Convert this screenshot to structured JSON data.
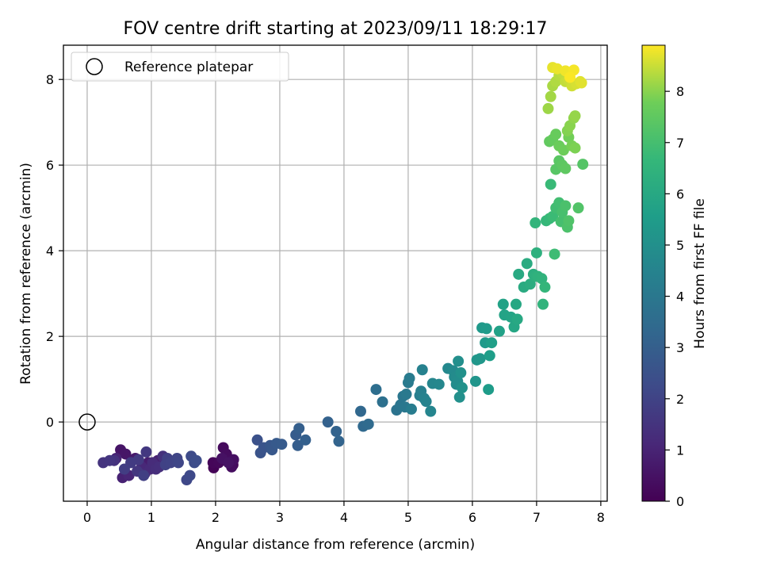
{
  "chart_data": {
    "type": "scatter",
    "title": "FOV centre drift starting at 2023/09/11 18:29:17",
    "xlabel": "Angular distance from reference (arcmin)",
    "ylabel": "Rotation from reference (arcmin)",
    "xlim": [
      -0.37,
      8.1
    ],
    "ylim": [
      -1.85,
      8.8
    ],
    "xticks": [
      0,
      1,
      2,
      3,
      4,
      5,
      6,
      7,
      8
    ],
    "yticks": [
      0,
      2,
      4,
      6,
      8
    ],
    "grid": true,
    "legend": {
      "position": "top-left",
      "entries": [
        "Reference platepar"
      ]
    },
    "reference_point": {
      "x": 0,
      "y": 0
    },
    "colorbar": {
      "label": "Hours from first FF file",
      "range": [
        0,
        8.9
      ],
      "ticks": [
        0,
        1,
        2,
        3,
        4,
        5,
        6,
        7,
        8
      ],
      "colormap": "viridis"
    },
    "points": [
      [
        1.97,
        -1.07,
        0.05
      ],
      [
        2.27,
        -1.0,
        0.1
      ],
      [
        1.96,
        -0.95,
        0.15
      ],
      [
        2.05,
        -0.95,
        0.2
      ],
      [
        2.12,
        -0.6,
        0.25
      ],
      [
        2.17,
        -0.75,
        0.3
      ],
      [
        2.25,
        -1.05,
        0.35
      ],
      [
        2.28,
        -0.88,
        0.4
      ],
      [
        2.1,
        -0.85,
        0.45
      ],
      [
        2.2,
        -0.95,
        0.5
      ],
      [
        0.52,
        -0.65,
        0.55
      ],
      [
        0.6,
        -0.75,
        0.6
      ],
      [
        0.75,
        -0.85,
        0.7
      ],
      [
        0.95,
        -0.95,
        0.8
      ],
      [
        1.05,
        -1.0,
        0.85
      ],
      [
        1.1,
        -0.9,
        0.9
      ],
      [
        0.55,
        -1.3,
        0.95
      ],
      [
        0.45,
        -0.85,
        1.0
      ],
      [
        0.65,
        -1.25,
        1.05
      ],
      [
        0.85,
        -1.05,
        1.1
      ],
      [
        0.9,
        -1.2,
        1.15
      ],
      [
        0.98,
        -1.1,
        1.2
      ],
      [
        1.02,
        -0.95,
        1.25
      ],
      [
        1.07,
        -1.1,
        1.3
      ],
      [
        1.12,
        -1.05,
        1.35
      ],
      [
        1.18,
        -0.8,
        1.4
      ],
      [
        0.42,
        -0.9,
        1.45
      ],
      [
        0.25,
        -0.95,
        1.5
      ],
      [
        0.35,
        -0.9,
        1.55
      ],
      [
        0.78,
        -1.15,
        1.6
      ],
      [
        0.92,
        -0.7,
        1.65
      ],
      [
        0.8,
        -0.88,
        1.7
      ],
      [
        0.68,
        -0.95,
        1.75
      ],
      [
        0.58,
        -1.1,
        1.8
      ],
      [
        0.88,
        -1.25,
        1.85
      ],
      [
        1.25,
        -0.85,
        1.9
      ],
      [
        1.22,
        -1.0,
        1.95
      ],
      [
        1.3,
        -0.95,
        2.0
      ],
      [
        1.4,
        -0.85,
        2.05
      ],
      [
        1.42,
        -0.95,
        2.1
      ],
      [
        1.55,
        -1.35,
        2.15
      ],
      [
        1.6,
        -1.25,
        2.2
      ],
      [
        1.62,
        -0.8,
        2.25
      ],
      [
        1.67,
        -0.95,
        2.3
      ],
      [
        1.7,
        -0.9,
        2.35
      ],
      [
        2.65,
        -0.42,
        2.5
      ],
      [
        2.7,
        -0.72,
        2.55
      ],
      [
        2.75,
        -0.6,
        2.6
      ],
      [
        2.85,
        -0.55,
        2.7
      ],
      [
        2.88,
        -0.65,
        2.75
      ],
      [
        2.95,
        -0.5,
        2.8
      ],
      [
        3.03,
        -0.52,
        2.85
      ],
      [
        3.25,
        -0.3,
        2.9
      ],
      [
        3.28,
        -0.55,
        2.95
      ],
      [
        3.3,
        -0.15,
        3.0
      ],
      [
        3.4,
        -0.42,
        3.05
      ],
      [
        3.75,
        0.0,
        3.1
      ],
      [
        3.88,
        -0.22,
        3.15
      ],
      [
        3.92,
        -0.45,
        3.2
      ],
      [
        4.26,
        0.25,
        3.35
      ],
      [
        4.3,
        -0.1,
        3.4
      ],
      [
        4.38,
        -0.05,
        3.45
      ],
      [
        4.5,
        0.76,
        3.6
      ],
      [
        4.6,
        0.47,
        3.7
      ],
      [
        4.82,
        0.28,
        3.8
      ],
      [
        4.88,
        0.4,
        3.9
      ],
      [
        4.92,
        0.6,
        3.95
      ],
      [
        4.95,
        0.35,
        4.0
      ],
      [
        4.97,
        0.65,
        4.05
      ],
      [
        5.0,
        0.92,
        4.1
      ],
      [
        5.02,
        1.02,
        4.15
      ],
      [
        5.05,
        0.3,
        4.2
      ],
      [
        5.18,
        0.62,
        4.3
      ],
      [
        5.2,
        0.72,
        4.35
      ],
      [
        5.22,
        1.22,
        4.4
      ],
      [
        5.25,
        0.55,
        4.45
      ],
      [
        5.28,
        0.48,
        4.5
      ],
      [
        5.35,
        0.25,
        4.55
      ],
      [
        5.38,
        0.9,
        4.6
      ],
      [
        5.48,
        0.88,
        4.65
      ],
      [
        5.62,
        1.25,
        4.7
      ],
      [
        5.7,
        1.2,
        4.75
      ],
      [
        5.72,
        1.05,
        4.8
      ],
      [
        5.75,
        0.88,
        4.85
      ],
      [
        5.77,
        0.95,
        4.9
      ],
      [
        5.78,
        1.42,
        4.95
      ],
      [
        5.8,
        0.58,
        5.0
      ],
      [
        5.82,
        1.15,
        5.05
      ],
      [
        5.84,
        0.8,
        5.1
      ],
      [
        6.05,
        0.95,
        5.2
      ],
      [
        6.07,
        1.45,
        5.25
      ],
      [
        6.12,
        1.48,
        5.3
      ],
      [
        6.15,
        2.2,
        5.35
      ],
      [
        6.2,
        1.85,
        5.4
      ],
      [
        6.22,
        2.18,
        5.45
      ],
      [
        6.25,
        0.76,
        5.5
      ],
      [
        6.27,
        1.55,
        5.55
      ],
      [
        6.3,
        1.85,
        5.6
      ],
      [
        6.42,
        2.12,
        5.7
      ],
      [
        6.48,
        2.75,
        5.75
      ],
      [
        6.5,
        2.5,
        5.8
      ],
      [
        6.6,
        2.45,
        5.85
      ],
      [
        6.65,
        2.22,
        5.9
      ],
      [
        6.68,
        2.75,
        5.95
      ],
      [
        6.7,
        2.4,
        6.0
      ],
      [
        6.72,
        3.45,
        6.05
      ],
      [
        6.8,
        3.15,
        6.1
      ],
      [
        6.85,
        3.7,
        6.15
      ],
      [
        6.9,
        3.22,
        6.2
      ],
      [
        6.95,
        3.45,
        6.25
      ],
      [
        6.98,
        3.4,
        6.3
      ],
      [
        7.0,
        3.95,
        6.35
      ],
      [
        7.02,
        3.4,
        6.4
      ],
      [
        7.08,
        3.35,
        6.45
      ],
      [
        7.1,
        2.75,
        6.5
      ],
      [
        6.98,
        4.65,
        6.55
      ],
      [
        7.13,
        3.15,
        6.6
      ],
      [
        7.15,
        4.7,
        6.65
      ],
      [
        7.2,
        4.75,
        6.7
      ],
      [
        7.22,
        5.55,
        6.75
      ],
      [
        7.25,
        4.8,
        6.8
      ],
      [
        7.28,
        3.92,
        6.85
      ],
      [
        7.3,
        5.0,
        6.9
      ],
      [
        7.35,
        5.12,
        6.95
      ],
      [
        7.38,
        4.68,
        7.0
      ],
      [
        7.4,
        4.9,
        7.05
      ],
      [
        7.45,
        5.05,
        7.1
      ],
      [
        7.48,
        4.55,
        7.15
      ],
      [
        7.5,
        4.7,
        7.2
      ],
      [
        7.65,
        5.0,
        7.25
      ],
      [
        7.72,
        6.02,
        7.3
      ],
      [
        7.3,
        5.9,
        7.35
      ],
      [
        7.35,
        6.1,
        7.4
      ],
      [
        7.4,
        6.0,
        7.45
      ],
      [
        7.45,
        5.92,
        7.5
      ],
      [
        7.2,
        6.55,
        7.55
      ],
      [
        7.25,
        6.6,
        7.6
      ],
      [
        7.3,
        6.72,
        7.65
      ],
      [
        7.35,
        6.45,
        7.7
      ],
      [
        7.42,
        6.35,
        7.75
      ],
      [
        7.5,
        6.65,
        7.8
      ],
      [
        7.55,
        6.45,
        7.85
      ],
      [
        7.6,
        6.4,
        7.9
      ],
      [
        7.48,
        6.8,
        7.95
      ],
      [
        7.52,
        6.92,
        8.0
      ],
      [
        7.58,
        7.1,
        8.05
      ],
      [
        7.6,
        7.15,
        8.1
      ],
      [
        7.18,
        7.32,
        8.15
      ],
      [
        7.22,
        7.6,
        8.2
      ],
      [
        7.25,
        7.85,
        8.25
      ],
      [
        7.3,
        7.95,
        8.3
      ],
      [
        7.35,
        8.1,
        8.35
      ],
      [
        7.4,
        8.15,
        8.4
      ],
      [
        7.45,
        7.95,
        8.45
      ],
      [
        7.5,
        8.0,
        8.5
      ],
      [
        7.55,
        7.85,
        8.55
      ],
      [
        7.62,
        7.9,
        8.6
      ],
      [
        7.68,
        7.95,
        8.65
      ],
      [
        7.7,
        7.92,
        8.68
      ],
      [
        7.25,
        8.28,
        8.72
      ],
      [
        7.32,
        8.25,
        8.76
      ],
      [
        7.45,
        8.2,
        8.8
      ],
      [
        7.58,
        8.22,
        8.84
      ],
      [
        7.52,
        8.05,
        8.88
      ]
    ]
  }
}
